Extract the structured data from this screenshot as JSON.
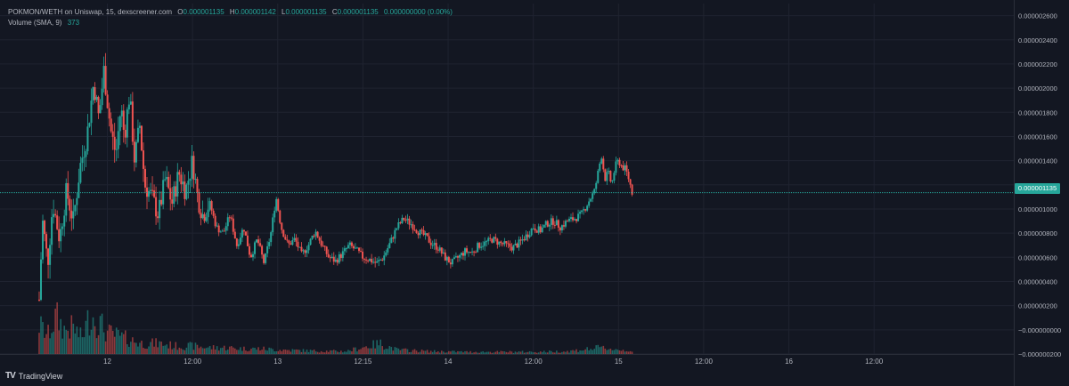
{
  "legend": {
    "symbol_line": "POKMON/WETH on Uniswap, 15, dexscreener.com",
    "o_label": "O",
    "o_value": "0.000001135",
    "h_label": "H",
    "h_value": "0.000001142",
    "l_label": "L",
    "l_value": "0.000001135",
    "c_label": "C",
    "c_value": "0.000001135",
    "change": "0.000000000 (0.00%)",
    "volume_label": "Volume (SMA, 9)",
    "volume_value": "373"
  },
  "branding": {
    "logo_text": "TradingView",
    "logo_mark": "TV"
  },
  "current_price_label": "0.000001135",
  "colors": {
    "background": "#131722",
    "grid": "#1f2330",
    "up": "#26a69a",
    "down": "#ef5350",
    "axis_text": "#b2b5be",
    "price_line": "#26a69a"
  },
  "chart_data": {
    "type": "candlestick",
    "y_tick_labels": [
      "0.000002600",
      "0.000002400",
      "0.000002200",
      "0.000002000",
      "0.000001800",
      "0.000001600",
      "0.000001400",
      "0.000001200",
      "0.000001000",
      "0.000000800",
      "0.000000600",
      "0.000000400",
      "0.000000200",
      "−0.000000000",
      "−0.000000200"
    ],
    "y_tick_values": [
      2.6,
      2.4,
      2.2,
      2.0,
      1.8,
      1.6,
      1.4,
      1.2,
      1.0,
      0.8,
      0.6,
      0.4,
      0.2,
      0.0,
      -0.2
    ],
    "y_unit_scale": "values in millionths (1e-6)",
    "ylim": [
      -0.2,
      2.7
    ],
    "x_tick_labels": [
      "12",
      "12:00",
      "13",
      "12:15",
      "14",
      "12:00",
      "15",
      "12:00",
      "16",
      "12:00"
    ],
    "x_tick_values": [
      12.0,
      12.5,
      13.0,
      13.5,
      14.0,
      14.5,
      15.0,
      15.5,
      16.0,
      16.5
    ],
    "xlim": [
      11.37,
      17.32
    ],
    "current_price": 1.135,
    "grid": true,
    "price_path": [
      [
        11.6,
        0.25
      ],
      [
        11.62,
        0.9
      ],
      [
        11.65,
        0.55
      ],
      [
        11.68,
        1.05
      ],
      [
        11.72,
        0.75
      ],
      [
        11.76,
        1.15
      ],
      [
        11.8,
        0.9
      ],
      [
        11.84,
        1.35
      ],
      [
        11.88,
        1.6
      ],
      [
        11.92,
        2.05
      ],
      [
        11.95,
        1.75
      ],
      [
        11.98,
        2.15
      ],
      [
        12.02,
        1.65
      ],
      [
        12.05,
        1.45
      ],
      [
        12.08,
        1.85
      ],
      [
        12.1,
        1.6
      ],
      [
        12.13,
        1.95
      ],
      [
        12.16,
        1.4
      ],
      [
        12.19,
        1.7
      ],
      [
        12.22,
        1.2
      ],
      [
        12.26,
        1.1
      ],
      [
        12.3,
        0.95
      ],
      [
        12.34,
        1.25
      ],
      [
        12.38,
        1.05
      ],
      [
        12.42,
        1.3
      ],
      [
        12.46,
        1.15
      ],
      [
        12.5,
        1.4
      ],
      [
        12.53,
        1.1
      ],
      [
        12.56,
        0.95
      ],
      [
        12.6,
        1.05
      ],
      [
        12.64,
        0.85
      ],
      [
        12.68,
        0.8
      ],
      [
        12.72,
        0.95
      ],
      [
        12.76,
        0.7
      ],
      [
        12.8,
        0.85
      ],
      [
        12.84,
        0.6
      ],
      [
        12.88,
        0.75
      ],
      [
        12.92,
        0.55
      ],
      [
        12.96,
        0.8
      ],
      [
        12.99,
        1.1
      ],
      [
        13.02,
        0.85
      ],
      [
        13.06,
        0.7
      ],
      [
        13.1,
        0.75
      ],
      [
        13.14,
        0.62
      ],
      [
        13.18,
        0.7
      ],
      [
        13.22,
        0.82
      ],
      [
        13.26,
        0.7
      ],
      [
        13.3,
        0.6
      ],
      [
        13.34,
        0.57
      ],
      [
        13.38,
        0.63
      ],
      [
        13.42,
        0.7
      ],
      [
        13.46,
        0.66
      ],
      [
        13.5,
        0.6
      ],
      [
        13.54,
        0.58
      ],
      [
        13.58,
        0.55
      ],
      [
        13.62,
        0.6
      ],
      [
        13.66,
        0.72
      ],
      [
        13.7,
        0.85
      ],
      [
        13.74,
        0.92
      ],
      [
        13.78,
        0.88
      ],
      [
        13.82,
        0.82
      ],
      [
        13.86,
        0.78
      ],
      [
        13.9,
        0.72
      ],
      [
        13.94,
        0.68
      ],
      [
        13.98,
        0.6
      ],
      [
        14.02,
        0.55
      ],
      [
        14.06,
        0.6
      ],
      [
        14.1,
        0.65
      ],
      [
        14.14,
        0.64
      ],
      [
        14.18,
        0.7
      ],
      [
        14.22,
        0.72
      ],
      [
        14.26,
        0.75
      ],
      [
        14.3,
        0.72
      ],
      [
        14.34,
        0.7
      ],
      [
        14.38,
        0.68
      ],
      [
        14.42,
        0.72
      ],
      [
        14.46,
        0.78
      ],
      [
        14.5,
        0.85
      ],
      [
        14.54,
        0.82
      ],
      [
        14.58,
        0.88
      ],
      [
        14.62,
        0.9
      ],
      [
        14.66,
        0.85
      ],
      [
        14.7,
        0.9
      ],
      [
        14.74,
        0.92
      ],
      [
        14.78,
        0.95
      ],
      [
        14.82,
        1.05
      ],
      [
        14.86,
        1.15
      ],
      [
        14.88,
        1.3
      ],
      [
        14.9,
        1.45
      ],
      [
        14.92,
        1.25
      ],
      [
        14.94,
        1.3
      ],
      [
        14.96,
        1.2
      ],
      [
        14.98,
        1.35
      ],
      [
        15.0,
        1.4
      ],
      [
        15.02,
        1.35
      ],
      [
        15.04,
        1.33
      ],
      [
        15.06,
        1.25
      ],
      [
        15.08,
        1.14
      ]
    ],
    "volume_levels": [
      [
        11.6,
        0.55
      ],
      [
        11.65,
        0.35
      ],
      [
        11.7,
        0.7
      ],
      [
        11.75,
        0.45
      ],
      [
        11.8,
        0.5
      ],
      [
        11.85,
        0.3
      ],
      [
        11.9,
        0.75
      ],
      [
        11.95,
        0.6
      ],
      [
        12.0,
        0.4
      ],
      [
        12.05,
        0.35
      ],
      [
        12.1,
        0.3
      ],
      [
        12.15,
        0.25
      ],
      [
        12.2,
        0.2
      ],
      [
        12.3,
        0.2
      ],
      [
        12.4,
        0.15
      ],
      [
        12.5,
        0.15
      ],
      [
        12.6,
        0.12
      ],
      [
        12.7,
        0.12
      ],
      [
        12.8,
        0.1
      ],
      [
        12.9,
        0.1
      ],
      [
        13.0,
        0.08
      ],
      [
        13.2,
        0.06
      ],
      [
        13.4,
        0.05
      ],
      [
        13.6,
        0.2
      ],
      [
        13.7,
        0.08
      ],
      [
        13.9,
        0.05
      ],
      [
        14.1,
        0.04
      ],
      [
        14.3,
        0.04
      ],
      [
        14.5,
        0.04
      ],
      [
        14.7,
        0.05
      ],
      [
        14.9,
        0.12
      ],
      [
        15.0,
        0.08
      ],
      [
        15.08,
        0.06
      ]
    ]
  }
}
